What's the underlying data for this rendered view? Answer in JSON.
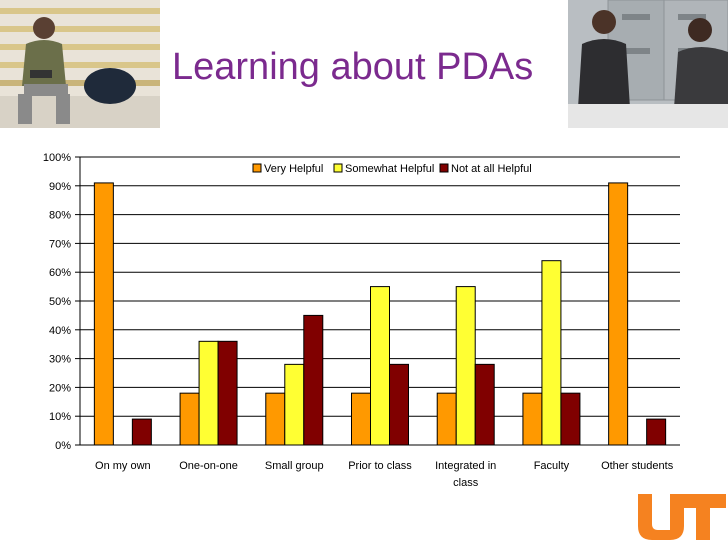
{
  "slide": {
    "title": "Learning about PDAs",
    "photo_left": "student-with-laptop-on-bleachers",
    "photo_right": "two-people-talking-at-filing-cabinets",
    "logo": "UT"
  },
  "colors": {
    "title": "#7b2a8e",
    "very_helpful": "#ff9900",
    "somewhat_helpful": "#ffff33",
    "not_helpful": "#800000",
    "logo": "#f58220"
  },
  "chart_data": {
    "type": "bar",
    "title": "",
    "xlabel": "",
    "ylabel": "",
    "categories": [
      "On my own",
      "One-on-one",
      "Small group",
      "Prior to class",
      "Integrated in class",
      "Faculty",
      "Other students"
    ],
    "series": [
      {
        "name": "Very Helpful",
        "color": "#ff9900",
        "values": [
          91,
          18,
          18,
          18,
          18,
          18,
          91
        ]
      },
      {
        "name": "Somewhat Helpful",
        "color": "#ffff33",
        "values": [
          0,
          36,
          28,
          55,
          55,
          64,
          0
        ]
      },
      {
        "name": "Not at all Helpful",
        "color": "#800000",
        "values": [
          9,
          36,
          45,
          28,
          28,
          18,
          9
        ]
      }
    ],
    "ylim": [
      0,
      100
    ],
    "yticks": [
      "0%",
      "10%",
      "20%",
      "30%",
      "40%",
      "50%",
      "60%",
      "70%",
      "80%",
      "90%",
      "100%"
    ],
    "grid": true,
    "legend_position": "top"
  }
}
